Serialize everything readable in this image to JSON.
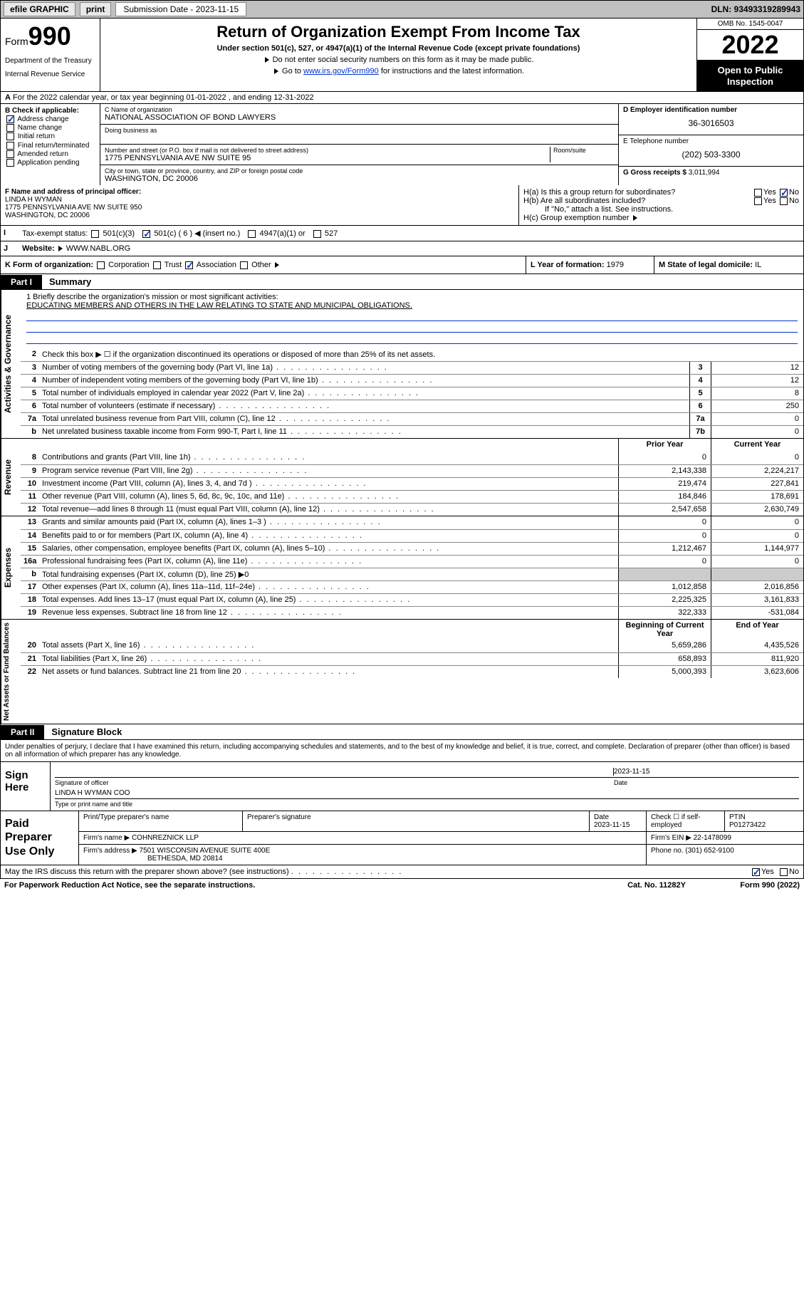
{
  "topbar": {
    "efile": "efile GRAPHIC",
    "print": "print",
    "subm_label": "Submission Date - 2023-11-15",
    "dln": "DLN: 93493319289943"
  },
  "header": {
    "form_word": "Form",
    "form_num": "990",
    "dept": "Department of the Treasury",
    "irs": "Internal Revenue Service",
    "title": "Return of Organization Exempt From Income Tax",
    "sub": "Under section 501(c), 527, or 4947(a)(1) of the Internal Revenue Code (except private foundations)",
    "note1": "Do not enter social security numbers on this form as it may be made public.",
    "note2_pre": "Go to ",
    "note2_link": "www.irs.gov/Form990",
    "note2_post": " for instructions and the latest information.",
    "omb": "OMB No. 1545-0047",
    "year": "2022",
    "insp": "Open to Public Inspection"
  },
  "rowA": "For the 2022 calendar year, or tax year beginning 01-01-2022   , and ending 12-31-2022",
  "colB": {
    "title": "B Check if applicable:",
    "items": [
      "Address change",
      "Name change",
      "Initial return",
      "Final return/terminated",
      "Amended return",
      "Application pending"
    ],
    "checked_idx": 0
  },
  "colC": {
    "name_lbl": "C Name of organization",
    "name": "NATIONAL ASSOCIATION OF BOND LAWYERS",
    "dba_lbl": "Doing business as",
    "addr_lbl": "Number and street (or P.O. box if mail is not delivered to street address)",
    "room_lbl": "Room/suite",
    "addr": "1775 PENNSYLVANIA AVE NW SUITE 95",
    "city_lbl": "City or town, state or province, country, and ZIP or foreign postal code",
    "city": "WASHINGTON, DC  20006"
  },
  "colD": {
    "ein_lbl": "D Employer identification number",
    "ein": "36-3016503",
    "tel_lbl": "E Telephone number",
    "tel": "(202) 503-3300",
    "gross_lbl": "G Gross receipts $",
    "gross": "3,011,994"
  },
  "rowF": {
    "lbl": "F Name and address of principal officer:",
    "name": "LINDA H WYMAN",
    "addr1": "1775 PENNSYLVANIA AVE NW SUITE 950",
    "addr2": "WASHINGTON, DC  20006"
  },
  "rowH": {
    "ha": "H(a)  Is this a group return for subordinates?",
    "hb": "H(b)  Are all subordinates included?",
    "hb_note": "If \"No,\" attach a list. See instructions.",
    "hc": "H(c)  Group exemption number",
    "yes": "Yes",
    "no": "No"
  },
  "rowI": {
    "lbl": "Tax-exempt status:",
    "opts": [
      "501(c)(3)",
      "501(c) ( 6 ) ◀ (insert no.)",
      "4947(a)(1) or",
      "527"
    ],
    "checked_idx": 1
  },
  "rowJ": {
    "lbl": "Website:",
    "val": "WWW.NABL.ORG"
  },
  "rowK": {
    "lbl": "K Form of organization:",
    "opts": [
      "Corporation",
      "Trust",
      "Association",
      "Other"
    ],
    "checked_idx": 2,
    "L_lbl": "L Year of formation:",
    "L_val": "1979",
    "M_lbl": "M State of legal domicile:",
    "M_val": "IL"
  },
  "part1": {
    "label": "Part I",
    "title": "Summary"
  },
  "mission": {
    "q": "1  Briefly describe the organization's mission or most significant activities:",
    "text": "EDUCATING MEMBERS AND OTHERS IN THE LAW RELATING TO STATE AND MUNICIPAL OBLIGATIONS."
  },
  "gov": {
    "vlabel": "Activities & Governance",
    "rows": [
      {
        "n": "2",
        "d": "Check this box ▶ ☐  if the organization discontinued its operations or disposed of more than 25% of its net assets."
      },
      {
        "n": "3",
        "d": "Number of voting members of the governing body (Part VI, line 1a)",
        "box": "3",
        "v": "12"
      },
      {
        "n": "4",
        "d": "Number of independent voting members of the governing body (Part VI, line 1b)",
        "box": "4",
        "v": "12"
      },
      {
        "n": "5",
        "d": "Total number of individuals employed in calendar year 2022 (Part V, line 2a)",
        "box": "5",
        "v": "8"
      },
      {
        "n": "6",
        "d": "Total number of volunteers (estimate if necessary)",
        "box": "6",
        "v": "250"
      },
      {
        "n": "7a",
        "d": "Total unrelated business revenue from Part VIII, column (C), line 12",
        "box": "7a",
        "v": "0"
      },
      {
        "n": "b",
        "d": "Net unrelated business taxable income from Form 990-T, Part I, line 11",
        "box": "7b",
        "v": "0"
      }
    ]
  },
  "rev": {
    "vlabel": "Revenue",
    "hdr_prior": "Prior Year",
    "hdr_curr": "Current Year",
    "rows": [
      {
        "n": "8",
        "d": "Contributions and grants (Part VIII, line 1h)",
        "p": "0",
        "c": "0"
      },
      {
        "n": "9",
        "d": "Program service revenue (Part VIII, line 2g)",
        "p": "2,143,338",
        "c": "2,224,217"
      },
      {
        "n": "10",
        "d": "Investment income (Part VIII, column (A), lines 3, 4, and 7d )",
        "p": "219,474",
        "c": "227,841"
      },
      {
        "n": "11",
        "d": "Other revenue (Part VIII, column (A), lines 5, 6d, 8c, 9c, 10c, and 11e)",
        "p": "184,846",
        "c": "178,691"
      },
      {
        "n": "12",
        "d": "Total revenue—add lines 8 through 11 (must equal Part VIII, column (A), line 12)",
        "p": "2,547,658",
        "c": "2,630,749"
      }
    ]
  },
  "exp": {
    "vlabel": "Expenses",
    "rows": [
      {
        "n": "13",
        "d": "Grants and similar amounts paid (Part IX, column (A), lines 1–3 )",
        "p": "0",
        "c": "0"
      },
      {
        "n": "14",
        "d": "Benefits paid to or for members (Part IX, column (A), line 4)",
        "p": "0",
        "c": "0"
      },
      {
        "n": "15",
        "d": "Salaries, other compensation, employee benefits (Part IX, column (A), lines 5–10)",
        "p": "1,212,467",
        "c": "1,144,977"
      },
      {
        "n": "16a",
        "d": "Professional fundraising fees (Part IX, column (A), line 11e)",
        "p": "0",
        "c": "0"
      },
      {
        "n": "b",
        "d": "Total fundraising expenses (Part IX, column (D), line 25) ▶0",
        "p": "",
        "c": ""
      },
      {
        "n": "17",
        "d": "Other expenses (Part IX, column (A), lines 11a–11d, 11f–24e)",
        "p": "1,012,858",
        "c": "2,016,856"
      },
      {
        "n": "18",
        "d": "Total expenses. Add lines 13–17 (must equal Part IX, column (A), line 25)",
        "p": "2,225,325",
        "c": "3,161,833"
      },
      {
        "n": "19",
        "d": "Revenue less expenses. Subtract line 18 from line 12",
        "p": "322,333",
        "c": "-531,084"
      }
    ]
  },
  "net": {
    "vlabel": "Net Assets or Fund Balances",
    "hdr_beg": "Beginning of Current Year",
    "hdr_end": "End of Year",
    "rows": [
      {
        "n": "20",
        "d": "Total assets (Part X, line 16)",
        "p": "5,659,286",
        "c": "4,435,526"
      },
      {
        "n": "21",
        "d": "Total liabilities (Part X, line 26)",
        "p": "658,893",
        "c": "811,920"
      },
      {
        "n": "22",
        "d": "Net assets or fund balances. Subtract line 21 from line 20",
        "p": "5,000,393",
        "c": "3,623,606"
      }
    ]
  },
  "part2": {
    "label": "Part II",
    "title": "Signature Block"
  },
  "sig": {
    "decl": "Under penalties of perjury, I declare that I have examined this return, including accompanying schedules and statements, and to the best of my knowledge and belief, it is true, correct, and complete. Declaration of preparer (other than officer) is based on all information of which preparer has any knowledge.",
    "sign_here": "Sign Here",
    "sig_officer": "Signature of officer",
    "date_lbl": "Date",
    "date": "2023-11-15",
    "name": "LINDA H WYMAN COO",
    "name_lbl": "Type or print name and title"
  },
  "prep": {
    "label": "Paid Preparer Use Only",
    "col_name": "Print/Type preparer's name",
    "col_sig": "Preparer's signature",
    "col_date": "Date",
    "date": "2023-11-15",
    "col_chk": "Check ☐ if self-employed",
    "col_ptin": "PTIN",
    "ptin": "P01273422",
    "firm_name_lbl": "Firm's name   ▶",
    "firm_name": "COHNREZNICK LLP",
    "firm_ein_lbl": "Firm's EIN ▶",
    "firm_ein": "22-1478099",
    "firm_addr_lbl": "Firm's address ▶",
    "firm_addr1": "7501 WISCONSIN AVENUE SUITE 400E",
    "firm_addr2": "BETHESDA, MD  20814",
    "phone_lbl": "Phone no.",
    "phone": "(301) 652-9100"
  },
  "footer": {
    "discuss": "May the IRS discuss this return with the preparer shown above? (see instructions)",
    "yes": "Yes",
    "no": "No",
    "paperwork": "For Paperwork Reduction Act Notice, see the separate instructions.",
    "cat": "Cat. No. 11282Y",
    "formref": "Form 990 (2022)"
  },
  "colors": {
    "link": "#0033cc",
    "topbar_bg": "#c0c0c0",
    "check": "#0033cc"
  }
}
